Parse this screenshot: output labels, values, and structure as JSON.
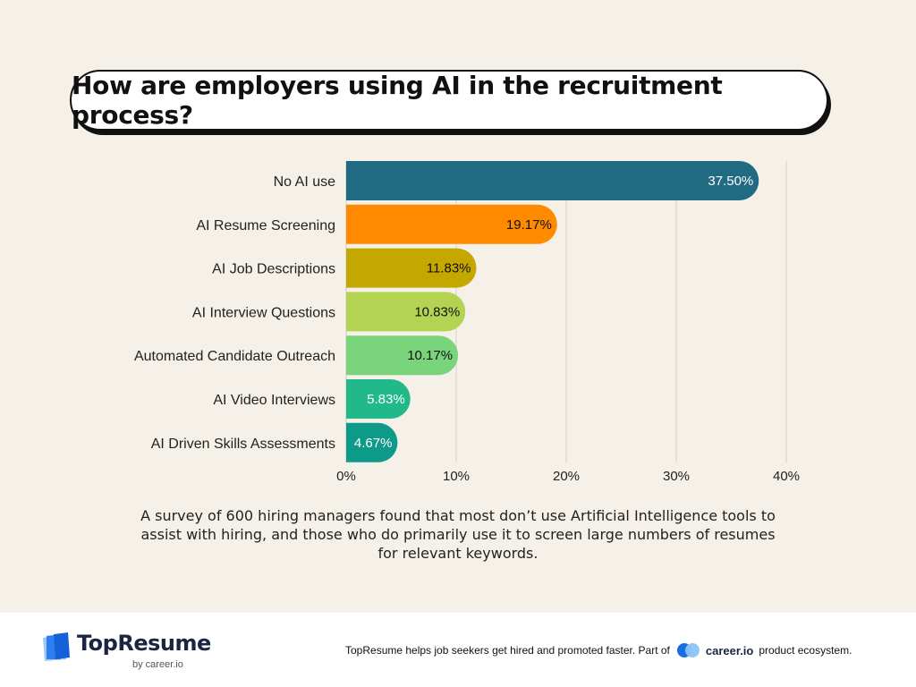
{
  "title": "How are employers using AI in the recruitment process?",
  "chart_data": {
    "type": "bar",
    "orientation": "horizontal",
    "categories": [
      "No AI use",
      "AI Resume Screening",
      "AI Job Descriptions",
      "AI Interview Questions",
      "Automated Candidate Outreach",
      "AI Video Interviews",
      "AI Driven Skills Assessments"
    ],
    "values": [
      37.5,
      19.17,
      11.83,
      10.83,
      10.17,
      5.83,
      4.67
    ],
    "value_labels": [
      "37.50%",
      "19.17%",
      "11.83%",
      "10.83%",
      "10.17%",
      "5.83%",
      "4.67%"
    ],
    "colors": [
      "#206a82",
      "#ff8a00",
      "#c4a800",
      "#b5d353",
      "#79d47c",
      "#22b98a",
      "#0e9a88"
    ],
    "label_colors": [
      "#ffffff",
      "#111111",
      "#111111",
      "#111111",
      "#111111",
      "#ffffff",
      "#ffffff"
    ],
    "xlim": [
      0,
      40
    ],
    "ticks": [
      0,
      10,
      20,
      30,
      40
    ],
    "tick_labels": [
      "0%",
      "10%",
      "20%",
      "30%",
      "40%"
    ],
    "grid": true,
    "grid_color": "#d6d1c9"
  },
  "caption": "A survey of 600 hiring managers found that most don’t use Artificial Intelligence tools to assist with hiring, and those who do primarily use it to screen large numbers of resumes for relevant keywords.",
  "footer": {
    "logo_name": "TopResume",
    "logo_sub": "by career.io",
    "tagline_prefix": "TopResume helps job seekers get hired and promoted faster. Part of",
    "brand": "career.io",
    "tagline_suffix": "product ecosystem."
  }
}
